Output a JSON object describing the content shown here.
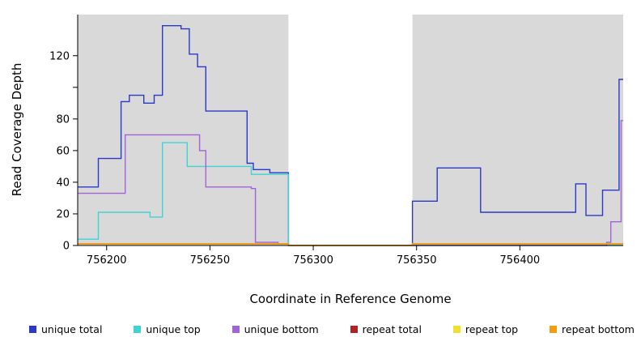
{
  "chart_data": {
    "type": "line",
    "style": "step-after",
    "title": "",
    "xlabel": "Coordinate in Reference Genome",
    "ylabel": "Read Coverage Depth",
    "xlim": [
      756186,
      756450
    ],
    "ylim": [
      0,
      146
    ],
    "x_ticks": [
      756200,
      756250,
      756300,
      756350,
      756400
    ],
    "y_ticks": [
      0,
      20,
      40,
      60,
      80,
      100,
      120
    ],
    "y_tick_labels": [
      "0",
      "20",
      "40",
      "60",
      "80",
      "",
      "120"
    ],
    "grid": false,
    "legend_position": "bottom",
    "background_color": "#ffffff",
    "shaded_color": "#d9d9d9",
    "shaded_regions": [
      {
        "from": 756186,
        "to": 756288
      },
      {
        "from": 756348,
        "to": 756450
      }
    ],
    "series": [
      {
        "name": "unique total",
        "color": "#2b39c8",
        "points": [
          [
            756186,
            37
          ],
          [
            756196,
            55
          ],
          [
            756207,
            91
          ],
          [
            756211,
            95
          ],
          [
            756218,
            90
          ],
          [
            756223,
            95
          ],
          [
            756227,
            139
          ],
          [
            756236,
            137
          ],
          [
            756240,
            121
          ],
          [
            756244,
            113
          ],
          [
            756248,
            85
          ],
          [
            756268,
            52
          ],
          [
            756271,
            48
          ],
          [
            756279,
            46
          ],
          [
            756288,
            0
          ],
          [
            756348,
            28
          ],
          [
            756360,
            49
          ],
          [
            756381,
            21
          ],
          [
            756427,
            39
          ],
          [
            756432,
            19
          ],
          [
            756440,
            35
          ],
          [
            756448,
            105
          ]
        ]
      },
      {
        "name": "unique top",
        "color": "#3fd4d4",
        "points": [
          [
            756186,
            4
          ],
          [
            756196,
            21
          ],
          [
            756221,
            18
          ],
          [
            756227,
            65
          ],
          [
            756239,
            50
          ],
          [
            756270,
            45
          ],
          [
            756288,
            0
          ]
        ]
      },
      {
        "name": "unique bottom",
        "color": "#a263d6",
        "points": [
          [
            756186,
            33
          ],
          [
            756209,
            70
          ],
          [
            756245,
            60
          ],
          [
            756248,
            37
          ],
          [
            756270,
            36
          ],
          [
            756272,
            2
          ],
          [
            756283,
            1
          ],
          [
            756288,
            0
          ],
          [
            756442,
            2
          ],
          [
            756444,
            15
          ],
          [
            756449,
            79
          ]
        ]
      },
      {
        "name": "repeat total",
        "color": "#b22222",
        "points": [
          [
            756186,
            1
          ],
          [
            756288,
            0
          ],
          [
            756348,
            1
          ]
        ]
      },
      {
        "name": "repeat top",
        "color": "#f0e130",
        "points": [
          [
            756186,
            1
          ],
          [
            756288,
            0
          ],
          [
            756348,
            1
          ]
        ]
      },
      {
        "name": "repeat bottom",
        "color": "#f39c12",
        "points": [
          [
            756186,
            1
          ],
          [
            756288,
            0
          ],
          [
            756348,
            1
          ]
        ]
      }
    ]
  }
}
